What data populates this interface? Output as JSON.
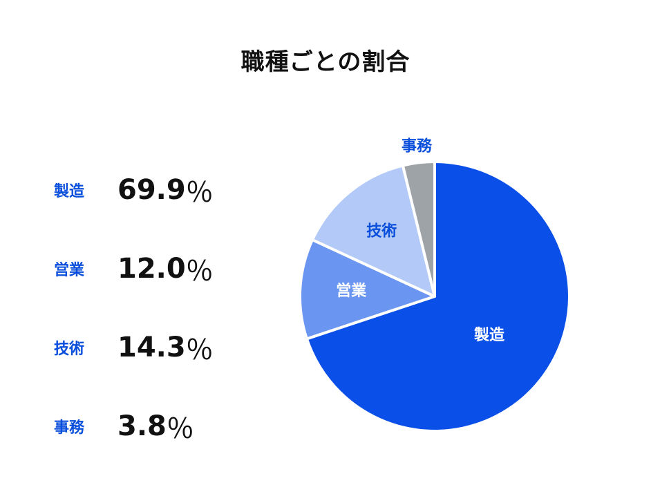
{
  "chart_data": {
    "type": "pie",
    "title": "職種ごとの割合",
    "unit": "％",
    "slices": [
      {
        "label": "製造",
        "value": 69.9,
        "display": "69.9",
        "color": "#0a4fe8",
        "label_color": "#ffffff"
      },
      {
        "label": "営業",
        "value": 12.0,
        "display": "12.0",
        "color": "#6a95f0",
        "label_color": "#ffffff"
      },
      {
        "label": "技術",
        "value": 14.3,
        "display": "14.3",
        "color": "#b3c9f7",
        "label_color": "#0a4fdc"
      },
      {
        "label": "事務",
        "value": 3.8,
        "display": "3.8",
        "color": "#9ea3a8",
        "label_color": "#0a4fdc"
      }
    ],
    "legend_label_color": "#0a4fdc"
  }
}
